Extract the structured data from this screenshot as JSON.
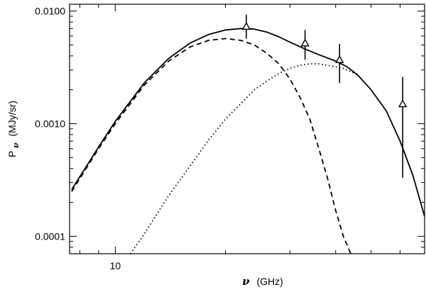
{
  "chart_data": {
    "type": "line",
    "xlabel_symbol": "ν",
    "xlabel_unit": "(GHz)",
    "ylabel_symbol": "P",
    "ylabel_sub": "ν",
    "ylabel_unit": "(MJy/sr)",
    "x_scale": "log",
    "y_scale": "log",
    "xlim": [
      7.5,
      70
    ],
    "ylim": [
      7e-05,
      0.0115
    ],
    "x_tick_labels": [
      {
        "value": 10,
        "label": "10"
      }
    ],
    "y_tick_labels": [
      {
        "value": 0.0001,
        "label": "0.0001"
      },
      {
        "value": 0.001,
        "label": "0.0010"
      },
      {
        "value": 0.01,
        "label": "0.0100"
      }
    ],
    "series": [
      {
        "style": "solid",
        "x": [
          7.6,
          9,
          10,
          12,
          14,
          16,
          18,
          20,
          22,
          23,
          24,
          26,
          28,
          30,
          33,
          36,
          40,
          43,
          46,
          50,
          55,
          60,
          65,
          70
        ],
        "y": [
          0.00026,
          0.00062,
          0.00105,
          0.0023,
          0.0038,
          0.0052,
          0.0062,
          0.0068,
          0.007,
          0.007,
          0.0069,
          0.0065,
          0.0059,
          0.0053,
          0.0046,
          0.0041,
          0.0036,
          0.0032,
          0.0027,
          0.002,
          0.0013,
          0.0007,
          0.00035,
          0.00015
        ]
      },
      {
        "style": "dashed",
        "x": [
          7.6,
          9,
          10,
          12,
          14,
          16,
          18,
          20,
          22,
          24,
          26,
          28,
          30,
          32,
          34,
          36,
          38,
          40,
          42,
          44
        ],
        "y": [
          0.00025,
          0.0006,
          0.001,
          0.0022,
          0.0036,
          0.0048,
          0.0055,
          0.0057,
          0.0055,
          0.005,
          0.0042,
          0.0034,
          0.0025,
          0.0017,
          0.0011,
          0.0006,
          0.00033,
          0.00017,
          0.0001,
          7e-05
        ]
      },
      {
        "style": "dotted",
        "x": [
          11,
          12,
          14,
          16,
          18,
          20,
          22,
          24,
          26,
          28,
          30,
          32,
          34,
          36,
          38,
          40,
          42,
          44,
          46
        ],
        "y": [
          7e-05,
          0.000105,
          0.00023,
          0.00042,
          0.00072,
          0.0011,
          0.0015,
          0.002,
          0.0024,
          0.0028,
          0.0031,
          0.0033,
          0.0034,
          0.0034,
          0.0033,
          0.0032,
          0.0031,
          0.0029,
          0.0027
        ]
      }
    ],
    "points": [
      {
        "x": 22.8,
        "y": 0.0073,
        "ylow": 0.0057,
        "yhigh": 0.0093
      },
      {
        "x": 33,
        "y": 0.0052,
        "ylow": 0.0037,
        "yhigh": 0.0068
      },
      {
        "x": 41,
        "y": 0.0037,
        "ylow": 0.0023,
        "yhigh": 0.0051
      },
      {
        "x": 61,
        "y": 0.0015,
        "ylow": 0.00033,
        "yhigh": 0.0026
      }
    ]
  }
}
